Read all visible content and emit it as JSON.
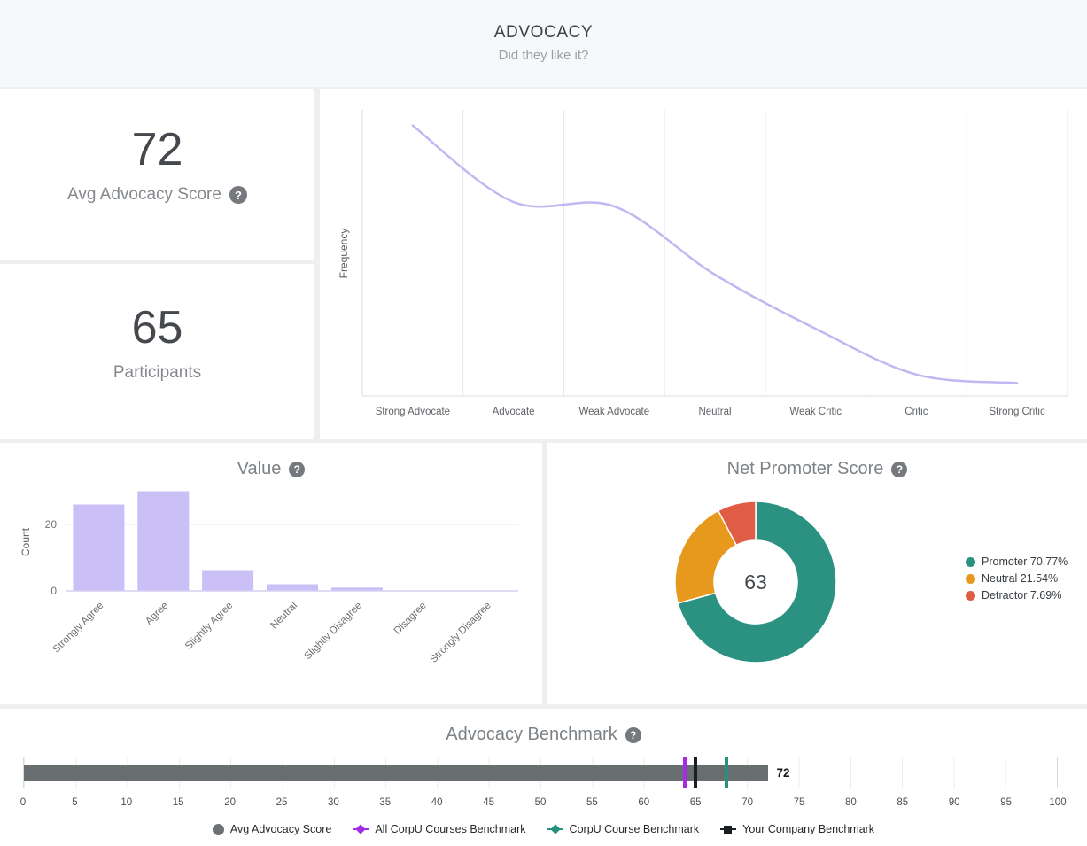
{
  "header": {
    "title": "ADVOCACY",
    "subtitle": "Did they like it?"
  },
  "icons": {
    "help": "?"
  },
  "stats": {
    "advocacy_score": {
      "value": "72",
      "label": "Avg Advocacy Score"
    },
    "participants": {
      "value": "65",
      "label": "Participants"
    }
  },
  "chart_data": [
    {
      "id": "frequency_curve",
      "type": "line",
      "title": "",
      "ylabel": "Frequency",
      "categories": [
        "Strong Advocate",
        "Advocate",
        "Weak Advocate",
        "Neutral",
        "Weak Critic",
        "Critic",
        "Strong Critic"
      ],
      "values": [
        0.945,
        0.678,
        0.663,
        0.424,
        0.235,
        0.075,
        0.045
      ],
      "line_color": "#bfb9f1",
      "grid": "vertical",
      "note": "values are relative frequency, no numeric y ticks shown"
    },
    {
      "id": "value_bars",
      "type": "bar",
      "title": "Value",
      "ylabel": "Count",
      "categories": [
        "Strongly Agree",
        "Agree",
        "Slightly Agree",
        "Neutral",
        "Slightly Disagree",
        "Disagree",
        "Strongly Disagree"
      ],
      "values": [
        26,
        30,
        6,
        2,
        1,
        0,
        0
      ],
      "yticks": [
        0,
        20
      ],
      "ylim": [
        0,
        31
      ],
      "bar_color": "#cabff7"
    },
    {
      "id": "nps_donut",
      "type": "pie",
      "title": "Net Promoter Score",
      "center_value": "63",
      "slices": [
        {
          "label": "Promoter",
          "pct": 70.77,
          "color": "#2b9282",
          "legend": "Promoter 70.77%"
        },
        {
          "label": "Neutral",
          "pct": 21.54,
          "color": "#e6991d",
          "legend": "Neutral 21.54%"
        },
        {
          "label": "Detractor",
          "pct": 7.69,
          "color": "#e15c44",
          "legend": "Detractor 7.69%"
        }
      ],
      "legend_position": "right"
    },
    {
      "id": "advocacy_benchmark",
      "type": "bar",
      "title": "Advocacy Benchmark",
      "value": 72,
      "value_label": "72",
      "bar_color": "#686d70",
      "axis": {
        "min": 0,
        "max": 100,
        "step": 5
      },
      "markers": [
        {
          "label": "All CorpU Courses Benchmark",
          "value": 64,
          "color": "#a42ce4"
        },
        {
          "label": "Your Company Benchmark",
          "value": 65,
          "color": "#1b1e20"
        },
        {
          "label": "CorpU Course Benchmark",
          "value": 68,
          "color": "#27917e"
        }
      ],
      "legend": [
        {
          "label": "Avg Advocacy Score",
          "shape": "circle",
          "color": "#6d7174"
        },
        {
          "label": "All CorpU Courses Benchmark",
          "shape": "diamond",
          "color": "#a42ce4"
        },
        {
          "label": "CorpU Course Benchmark",
          "shape": "diamond",
          "color": "#27917e"
        },
        {
          "label": "Your Company Benchmark",
          "shape": "square",
          "color": "#1b1e20"
        }
      ]
    }
  ]
}
